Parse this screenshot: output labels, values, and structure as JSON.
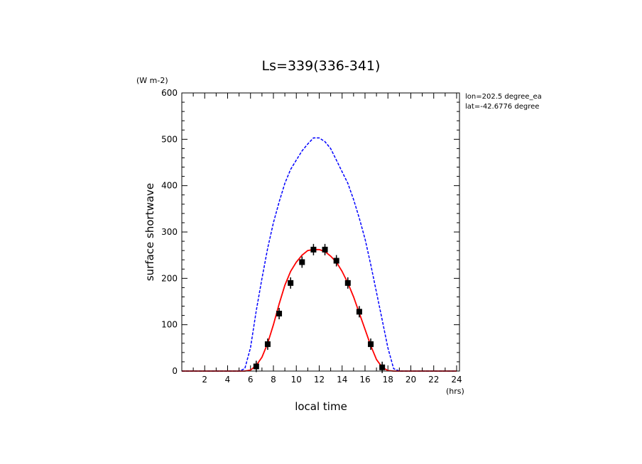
{
  "chart_data": {
    "type": "line",
    "title": "Ls=339(336-341)",
    "xlabel": "local time",
    "ylabel": "surface shortwave",
    "x_unit": "(hrs)",
    "y_unit": "(W m-2)",
    "xlim": [
      0,
      24.25
    ],
    "ylim": [
      0,
      600
    ],
    "x_ticks": [
      2,
      4,
      6,
      8,
      10,
      12,
      14,
      16,
      18,
      20,
      22,
      24
    ],
    "y_ticks": [
      0,
      100,
      200,
      300,
      400,
      500,
      600
    ],
    "annotations": [
      "lon=202.5 degree_ea",
      "lat=-42.6776 degree"
    ],
    "colors": {
      "dashed": "#0000ff",
      "solid": "#ff0000",
      "markers": "#000000"
    },
    "series": [
      {
        "style": "dashed",
        "x": [
          0,
          1,
          2,
          3,
          4,
          5,
          5.5,
          6,
          6.5,
          7,
          7.5,
          8,
          8.5,
          9,
          9.5,
          10,
          10.5,
          11,
          11.5,
          12,
          12.5,
          13,
          13.5,
          14,
          14.5,
          15,
          15.5,
          16,
          16.5,
          17,
          17.5,
          18,
          18.5,
          19,
          20,
          21,
          22,
          23,
          24
        ],
        "y": [
          0,
          0,
          0,
          0,
          0,
          0,
          5,
          50,
          130,
          200,
          265,
          320,
          365,
          405,
          435,
          455,
          475,
          490,
          503,
          503,
          495,
          480,
          455,
          430,
          405,
          370,
          330,
          285,
          230,
          170,
          110,
          50,
          5,
          0,
          0,
          0,
          0,
          0,
          0
        ]
      },
      {
        "style": "solid",
        "x": [
          0,
          1,
          2,
          3,
          4,
          5,
          5.5,
          6,
          6.5,
          7,
          7.5,
          8,
          8.5,
          9,
          9.5,
          10,
          10.5,
          11,
          11.5,
          12,
          12.5,
          13,
          13.5,
          14,
          14.5,
          15,
          15.5,
          16,
          16.5,
          17,
          17.5,
          18,
          18.5,
          19,
          20,
          21,
          22,
          23,
          24
        ],
        "y": [
          0,
          0,
          0,
          0,
          0,
          0,
          0,
          2,
          12,
          30,
          60,
          100,
          145,
          185,
          215,
          235,
          250,
          260,
          262,
          262,
          258,
          248,
          235,
          215,
          190,
          160,
          125,
          90,
          55,
          25,
          8,
          1,
          0,
          0,
          0,
          0,
          0,
          0,
          0
        ]
      },
      {
        "style": "markers",
        "x": [
          6.5,
          7.5,
          8.5,
          9.5,
          10.5,
          11.5,
          12.5,
          13.5,
          14.5,
          15.5,
          16.5,
          17.5
        ],
        "y": [
          10,
          58,
          124,
          190,
          235,
          262,
          262,
          238,
          190,
          128,
          58,
          8
        ]
      }
    ]
  }
}
